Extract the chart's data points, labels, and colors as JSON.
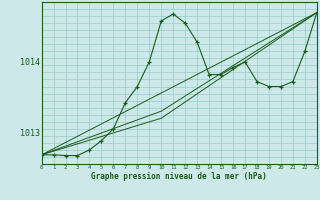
{
  "title": "Graphe pression niveau de la mer (hPa)",
  "bg_color": "#cce8e8",
  "grid_color": "#99cccc",
  "line_color": "#1a5c1a",
  "x_min": 0,
  "x_max": 23,
  "y_min": 1012.55,
  "y_max": 1014.85,
  "y_ticks": [
    1013,
    1014
  ],
  "x_ticks": [
    0,
    1,
    2,
    3,
    4,
    5,
    6,
    7,
    8,
    9,
    10,
    11,
    12,
    13,
    14,
    15,
    16,
    17,
    18,
    19,
    20,
    21,
    22,
    23
  ],
  "series1_x": [
    0,
    1,
    2,
    3,
    4,
    5,
    6,
    7,
    8,
    9,
    10,
    11,
    12,
    13,
    14,
    15,
    16,
    17,
    18,
    19,
    20,
    21,
    22,
    23
  ],
  "series1_y": [
    1012.68,
    1012.68,
    1012.67,
    1012.67,
    1012.75,
    1012.88,
    1013.05,
    1013.42,
    1013.65,
    1014.0,
    1014.58,
    1014.68,
    1014.55,
    1014.28,
    1013.82,
    1013.82,
    1013.92,
    1014.0,
    1013.72,
    1013.65,
    1013.65,
    1013.72,
    1014.15,
    1014.7
  ],
  "refline1_x": [
    0,
    23
  ],
  "refline1_y": [
    1012.68,
    1014.7
  ],
  "refline2_x": [
    0,
    10,
    23
  ],
  "refline2_y": [
    1012.68,
    1013.3,
    1014.7
  ],
  "refline3_x": [
    0,
    10,
    23
  ],
  "refline3_y": [
    1012.68,
    1013.2,
    1014.7
  ]
}
